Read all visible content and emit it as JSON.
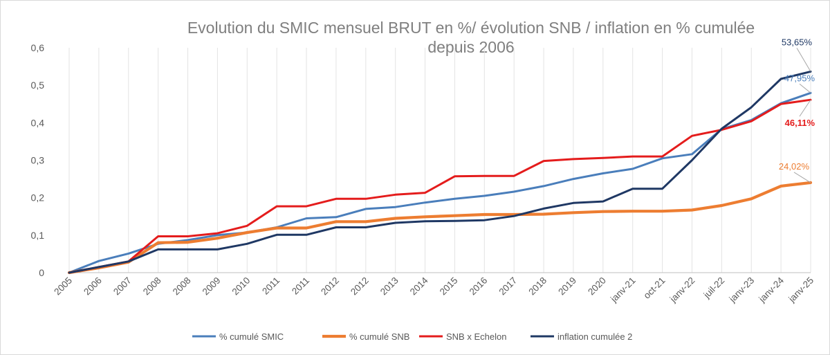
{
  "chart_data": {
    "type": "line",
    "title": "Evolution du SMIC mensuel BRUT en %/ évolution SNB / inflation en % cumulée",
    "subtitle": "depuis 2006",
    "xlabel": "",
    "ylabel": "",
    "ylim": [
      0,
      0.6
    ],
    "yticks": [
      0,
      0.1,
      0.2,
      0.3,
      0.4,
      0.5,
      0.6
    ],
    "ytick_labels": [
      "0",
      "0,1",
      "0,2",
      "0,3",
      "0,4",
      "0,5",
      "0,6"
    ],
    "grid": "vertical",
    "legend_position": "bottom",
    "categories": [
      "2005",
      "2006",
      "2007",
      "2008",
      "2008",
      "2009",
      "2010",
      "2011",
      "2011",
      "2012",
      "2012",
      "2013",
      "2014",
      "2015",
      "2016",
      "2017",
      "2018",
      "2019",
      "2020",
      "janv-21",
      "oct-21",
      "janv-22",
      "juil-22",
      "janv-23",
      "janv-24",
      "janv-25"
    ],
    "series": [
      {
        "name": "% cumulé SMIC",
        "color": "#4a7ebb",
        "values": [
          0,
          0.031,
          0.051,
          0.077,
          0.087,
          0.1,
          0.107,
          0.121,
          0.145,
          0.148,
          0.17,
          0.175,
          0.187,
          0.197,
          0.205,
          0.216,
          0.231,
          0.25,
          0.265,
          0.277,
          0.305,
          0.316,
          0.383,
          0.407,
          0.452,
          0.4795
        ]
      },
      {
        "name": "% cumulé SNB",
        "color": "#ed7d31",
        "values": [
          0,
          0.013,
          0.028,
          0.08,
          0.081,
          0.092,
          0.107,
          0.119,
          0.119,
          0.136,
          0.136,
          0.145,
          0.149,
          0.152,
          0.155,
          0.155,
          0.156,
          0.16,
          0.163,
          0.164,
          0.164,
          0.167,
          0.179,
          0.197,
          0.231,
          0.2402
        ]
      },
      {
        "name": "SNB x Echelon",
        "color": "#e41c1c",
        "values": [
          0,
          0.015,
          0.03,
          0.097,
          0.097,
          0.105,
          0.125,
          0.177,
          0.177,
          0.197,
          0.197,
          0.208,
          0.213,
          0.257,
          0.258,
          0.258,
          0.298,
          0.303,
          0.306,
          0.31,
          0.31,
          0.365,
          0.381,
          0.404,
          0.45,
          0.4611
        ]
      },
      {
        "name": "inflation cumulée 2",
        "color": "#1f3864",
        "values": [
          0,
          0.015,
          0.03,
          0.062,
          0.062,
          0.062,
          0.077,
          0.101,
          0.101,
          0.121,
          0.121,
          0.133,
          0.137,
          0.138,
          0.14,
          0.151,
          0.171,
          0.186,
          0.19,
          0.224,
          0.224,
          0.3,
          0.384,
          0.441,
          0.517,
          0.5365
        ]
      }
    ],
    "annotations": [
      {
        "series": "inflation cumulée 2",
        "text": "53,65%",
        "color": "#1f3864"
      },
      {
        "series": "% cumulé SMIC",
        "text": "47,95%",
        "color": "#4a7ebb"
      },
      {
        "series": "SNB x Echelon",
        "text": "46,11%",
        "color": "#e41c1c"
      },
      {
        "series": "% cumulé SNB",
        "text": "24,02%",
        "color": "#ed7d31"
      }
    ]
  }
}
